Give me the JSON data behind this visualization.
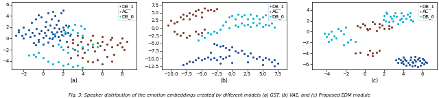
{
  "title": "Fig. 3: Speaker distribution of the emotion embeddings created by different models (a) GST, (b) VAE, and (c) Proposed EDM module",
  "subplot_labels": [
    "(a)",
    "(b)",
    "(c)"
  ],
  "colors": {
    "DB_1": "#1a4f9c",
    "AC": "#7b3728",
    "DB_6": "#00b4d4"
  },
  "plot_a": {
    "xlim": [
      -3.2,
      9.5
    ],
    "ylim": [
      -5.5,
      6.5
    ],
    "xticks": [
      -2,
      0,
      2,
      4,
      6,
      8
    ],
    "yticks": [
      -4,
      -2,
      0,
      2,
      4,
      6
    ],
    "DB_1": [
      [
        -2.5,
        1.5
      ],
      [
        -2.2,
        0.5
      ],
      [
        -2.0,
        2.0
      ],
      [
        -1.8,
        0.8
      ],
      [
        -1.5,
        1.5
      ],
      [
        -1.3,
        0.3
      ],
      [
        -1.1,
        1.0
      ],
      [
        -0.9,
        0.5
      ],
      [
        -0.7,
        1.8
      ],
      [
        -0.5,
        -0.2
      ],
      [
        -0.4,
        0.9
      ],
      [
        -0.2,
        1.4
      ],
      [
        0.0,
        0.2
      ],
      [
        0.1,
        1.0
      ],
      [
        0.2,
        2.1
      ],
      [
        0.3,
        0.6
      ],
      [
        0.5,
        1.5
      ],
      [
        0.6,
        0.1
      ],
      [
        0.7,
        2.3
      ],
      [
        0.8,
        1.2
      ],
      [
        0.9,
        -0.1
      ],
      [
        1.0,
        0.8
      ],
      [
        1.1,
        1.9
      ],
      [
        1.2,
        0.4
      ],
      [
        1.3,
        2.5
      ],
      [
        1.4,
        1.1
      ],
      [
        1.5,
        0.3
      ],
      [
        1.6,
        1.7
      ],
      [
        1.7,
        -0.3
      ],
      [
        1.8,
        1.3
      ],
      [
        1.9,
        0.7
      ],
      [
        2.0,
        2.0
      ],
      [
        2.1,
        1.5
      ],
      [
        2.2,
        0.9
      ],
      [
        2.3,
        2.4
      ],
      [
        2.4,
        -0.5
      ],
      [
        2.5,
        1.0
      ],
      [
        2.6,
        2.2
      ],
      [
        2.7,
        0.5
      ],
      [
        0.3,
        3.0
      ],
      [
        0.8,
        3.5
      ],
      [
        1.2,
        4.0
      ],
      [
        1.5,
        3.2
      ],
      [
        1.8,
        4.5
      ],
      [
        2.0,
        5.0
      ],
      [
        1.0,
        4.8
      ],
      [
        -0.2,
        3.8
      ],
      [
        -0.8,
        3.5
      ],
      [
        -1.2,
        2.8
      ],
      [
        -0.5,
        4.2
      ],
      [
        0.5,
        4.5
      ],
      [
        -2.0,
        0.0
      ],
      [
        -2.5,
        1.2
      ],
      [
        -2.8,
        0.5
      ],
      [
        -1.0,
        -0.8
      ],
      [
        -0.8,
        -1.2
      ],
      [
        -0.5,
        -0.5
      ],
      [
        0.0,
        -1.0
      ],
      [
        0.5,
        -0.7
      ],
      [
        1.0,
        -1.3
      ]
    ],
    "AC": [
      [
        2.5,
        -1.5
      ],
      [
        3.0,
        -0.8
      ],
      [
        3.2,
        -2.0
      ],
      [
        3.5,
        -1.2
      ],
      [
        3.8,
        -0.5
      ],
      [
        4.0,
        -1.8
      ],
      [
        4.2,
        -2.5
      ],
      [
        4.5,
        -1.0
      ],
      [
        4.8,
        -0.3
      ],
      [
        5.0,
        -1.5
      ],
      [
        5.2,
        -2.2
      ],
      [
        5.5,
        -0.8
      ],
      [
        5.8,
        -1.3
      ],
      [
        6.0,
        -0.5
      ],
      [
        6.2,
        -2.0
      ],
      [
        6.5,
        -1.0
      ],
      [
        6.8,
        -0.2
      ],
      [
        7.0,
        -1.5
      ],
      [
        7.2,
        -2.8
      ],
      [
        7.5,
        -1.2
      ],
      [
        7.8,
        -0.8
      ],
      [
        8.0,
        -1.5
      ],
      [
        8.2,
        -2.0
      ],
      [
        8.5,
        -0.5
      ],
      [
        3.5,
        -3.0
      ],
      [
        4.0,
        -3.5
      ],
      [
        4.5,
        -4.0
      ],
      [
        5.0,
        -4.2
      ],
      [
        5.5,
        -3.8
      ],
      [
        6.0,
        -4.5
      ],
      [
        6.5,
        -3.2
      ],
      [
        7.0,
        -4.0
      ],
      [
        3.0,
        -0.2
      ],
      [
        3.5,
        0.5
      ],
      [
        4.0,
        0.2
      ],
      [
        2.8,
        -3.5
      ],
      [
        5.0,
        0.5
      ],
      [
        6.0,
        0.3
      ],
      [
        7.0,
        0.2
      ],
      [
        8.0,
        0.1
      ]
    ],
    "DB_6": [
      [
        2.0,
        0.5
      ],
      [
        2.2,
        1.2
      ],
      [
        2.5,
        2.0
      ],
      [
        2.8,
        0.8
      ],
      [
        3.0,
        1.5
      ],
      [
        3.2,
        2.5
      ],
      [
        3.5,
        1.0
      ],
      [
        3.8,
        2.2
      ],
      [
        4.0,
        0.5
      ],
      [
        4.2,
        1.8
      ],
      [
        1.5,
        -1.0
      ],
      [
        1.8,
        -1.5
      ],
      [
        2.0,
        -2.0
      ],
      [
        2.5,
        -2.5
      ],
      [
        3.0,
        -1.8
      ],
      [
        3.5,
        -2.2
      ],
      [
        4.0,
        -1.5
      ],
      [
        4.5,
        -2.0
      ],
      [
        5.0,
        -1.0
      ],
      [
        5.5,
        -1.5
      ],
      [
        1.0,
        0.2
      ],
      [
        1.2,
        0.8
      ],
      [
        -0.5,
        -2.5
      ],
      [
        -1.0,
        -2.8
      ],
      [
        -0.8,
        -3.2
      ],
      [
        -1.5,
        -3.0
      ],
      [
        0.0,
        -3.5
      ],
      [
        0.5,
        -4.0
      ],
      [
        1.0,
        -4.5
      ],
      [
        1.5,
        -4.2
      ],
      [
        2.0,
        -4.8
      ],
      [
        2.5,
        -4.5
      ],
      [
        3.0,
        -5.0
      ],
      [
        3.5,
        -4.8
      ],
      [
        4.0,
        -5.2
      ]
    ]
  },
  "plot_b": {
    "xlim": [
      -11.5,
      9.0
    ],
    "ylim": [
      -13.5,
      8.5
    ],
    "xticks": [
      -10.0,
      -7.5,
      -5.0,
      -2.5,
      0.0,
      2.5,
      5.0,
      7.5
    ],
    "yticks": [
      -12.5,
      -10.0,
      -7.5,
      -5.0,
      -2.5,
      0.0,
      2.5,
      5.0,
      7.5
    ],
    "DB_1": [
      [
        -3.0,
        -5.0
      ],
      [
        -2.5,
        -5.5
      ],
      [
        -2.0,
        -6.0
      ],
      [
        -1.5,
        -5.8
      ],
      [
        -1.0,
        -6.5
      ],
      [
        -0.5,
        -7.0
      ],
      [
        0.0,
        -6.2
      ],
      [
        0.5,
        -7.5
      ],
      [
        1.0,
        -8.0
      ],
      [
        1.5,
        -7.2
      ],
      [
        2.0,
        -8.5
      ],
      [
        2.5,
        -9.0
      ],
      [
        3.0,
        -8.2
      ],
      [
        3.5,
        -9.5
      ],
      [
        4.0,
        -10.0
      ],
      [
        4.5,
        -9.2
      ],
      [
        5.0,
        -10.5
      ],
      [
        5.5,
        -9.8
      ],
      [
        6.0,
        -10.2
      ],
      [
        6.5,
        -11.0
      ],
      [
        7.0,
        -10.5
      ],
      [
        7.5,
        -11.5
      ],
      [
        -0.5,
        -9.0
      ],
      [
        -1.0,
        -9.5
      ],
      [
        -1.5,
        -10.0
      ],
      [
        -2.0,
        -9.2
      ],
      [
        -2.5,
        -10.5
      ],
      [
        -3.0,
        -9.8
      ],
      [
        -3.5,
        -10.2
      ],
      [
        -4.0,
        -9.5
      ],
      [
        -4.5,
        -10.0
      ],
      [
        -5.0,
        -10.5
      ],
      [
        -5.5,
        -9.8
      ],
      [
        -6.0,
        -10.5
      ],
      [
        -6.5,
        -11.0
      ],
      [
        -7.0,
        -10.8
      ],
      [
        -7.5,
        -11.5
      ],
      [
        -8.0,
        -12.0
      ],
      [
        -3.5,
        -8.0
      ],
      [
        -2.0,
        -11.5
      ],
      [
        0.0,
        -11.2
      ],
      [
        2.5,
        -11.0
      ],
      [
        5.0,
        -12.0
      ],
      [
        7.0,
        -12.5
      ]
    ],
    "AC": [
      [
        -8.0,
        3.0
      ],
      [
        -7.5,
        4.0
      ],
      [
        -7.0,
        5.0
      ],
      [
        -6.5,
        4.5
      ],
      [
        -6.0,
        5.5
      ],
      [
        -5.5,
        6.0
      ],
      [
        -5.0,
        5.2
      ],
      [
        -4.5,
        6.5
      ],
      [
        -4.0,
        5.8
      ],
      [
        -3.5,
        6.0
      ],
      [
        -3.0,
        5.5
      ],
      [
        -2.5,
        6.2
      ],
      [
        -9.0,
        2.0
      ],
      [
        -8.5,
        3.5
      ],
      [
        -8.0,
        4.5
      ],
      [
        -7.0,
        3.0
      ],
      [
        -6.0,
        4.0
      ],
      [
        -5.0,
        3.5
      ],
      [
        -9.5,
        1.5
      ],
      [
        -10.0,
        2.5
      ],
      [
        -9.5,
        -1.0
      ],
      [
        -9.0,
        -2.0
      ],
      [
        -8.5,
        -2.5
      ],
      [
        -8.0,
        -1.5
      ],
      [
        -7.5,
        -3.0
      ],
      [
        -7.0,
        -2.5
      ],
      [
        -6.0,
        -1.0
      ],
      [
        -5.5,
        -2.0
      ],
      [
        -5.0,
        -1.5
      ],
      [
        -4.5,
        -0.5
      ],
      [
        -10.5,
        1.0
      ]
    ],
    "DB_6": [
      [
        -0.5,
        3.5
      ],
      [
        0.0,
        4.0
      ],
      [
        0.5,
        3.0
      ],
      [
        1.0,
        4.5
      ],
      [
        1.5,
        3.8
      ],
      [
        2.0,
        4.2
      ],
      [
        2.5,
        3.0
      ],
      [
        3.0,
        4.5
      ],
      [
        3.5,
        3.2
      ],
      [
        4.0,
        4.0
      ],
      [
        4.5,
        2.8
      ],
      [
        5.0,
        3.5
      ],
      [
        5.5,
        4.2
      ],
      [
        6.0,
        3.0
      ],
      [
        6.5,
        4.5
      ],
      [
        7.0,
        3.8
      ],
      [
        7.5,
        4.0
      ],
      [
        0.5,
        1.0
      ],
      [
        1.0,
        0.5
      ],
      [
        1.5,
        1.5
      ],
      [
        2.0,
        0.8
      ],
      [
        2.5,
        1.2
      ],
      [
        3.0,
        0.5
      ],
      [
        3.5,
        1.8
      ],
      [
        4.0,
        0.8
      ],
      [
        4.5,
        1.5
      ],
      [
        5.0,
        0.5
      ],
      [
        5.5,
        1.2
      ],
      [
        6.0,
        0.8
      ],
      [
        6.5,
        1.5
      ],
      [
        7.0,
        0.2
      ],
      [
        -1.5,
        1.0
      ],
      [
        -2.0,
        -0.5
      ],
      [
        -2.5,
        -1.5
      ],
      [
        -3.0,
        -1.0
      ],
      [
        -3.5,
        -2.0
      ],
      [
        -4.0,
        -1.5
      ],
      [
        -4.5,
        -3.0
      ],
      [
        -5.0,
        -2.5
      ],
      [
        -5.5,
        -4.0
      ],
      [
        -1.0,
        2.0
      ],
      [
        -0.5,
        0.0
      ]
    ]
  },
  "plot_c": {
    "xlim": [
      -5.5,
      7.5
    ],
    "ylim": [
      -7.0,
      5.5
    ],
    "xticks": [
      -4,
      -2,
      0,
      2,
      4,
      6
    ],
    "yticks": [
      -6,
      -4,
      -2,
      0,
      2,
      4
    ],
    "DB_1": [
      [
        3.5,
        -5.0
      ],
      [
        3.7,
        -5.2
      ],
      [
        3.9,
        -5.5
      ],
      [
        4.1,
        -5.1
      ],
      [
        4.3,
        -5.4
      ],
      [
        4.5,
        -5.7
      ],
      [
        4.7,
        -5.3
      ],
      [
        4.9,
        -5.6
      ],
      [
        5.1,
        -5.2
      ],
      [
        5.3,
        -5.5
      ],
      [
        5.5,
        -5.1
      ],
      [
        5.7,
        -5.4
      ],
      [
        5.9,
        -5.7
      ],
      [
        6.1,
        -5.3
      ],
      [
        6.3,
        -5.6
      ],
      [
        4.0,
        -6.0
      ],
      [
        4.3,
        -6.3
      ],
      [
        4.6,
        -6.1
      ],
      [
        4.9,
        -6.4
      ],
      [
        5.2,
        -6.2
      ],
      [
        5.5,
        -6.5
      ],
      [
        5.8,
        -6.3
      ],
      [
        6.1,
        -6.0
      ],
      [
        3.8,
        -5.8
      ],
      [
        4.8,
        -4.8
      ],
      [
        5.2,
        -4.6
      ],
      [
        5.6,
        -4.9
      ],
      [
        3.2,
        -5.2
      ],
      [
        3.4,
        -5.8
      ],
      [
        4.0,
        -4.7
      ],
      [
        5.0,
        -5.8
      ],
      [
        6.0,
        -5.0
      ],
      [
        6.4,
        -5.8
      ]
    ],
    "AC": [
      [
        -0.5,
        0.8
      ],
      [
        0.0,
        1.2
      ],
      [
        0.5,
        0.5
      ],
      [
        1.0,
        1.5
      ],
      [
        1.5,
        0.8
      ],
      [
        0.8,
        1.8
      ],
      [
        -0.2,
        1.5
      ],
      [
        0.3,
        0.3
      ],
      [
        -0.8,
        1.0
      ],
      [
        1.2,
        0.2
      ],
      [
        1.8,
        1.2
      ],
      [
        2.0,
        0.6
      ],
      [
        2.5,
        1.0
      ],
      [
        1.5,
        1.5
      ],
      [
        0.5,
        -3.5
      ],
      [
        0.8,
        -4.0
      ],
      [
        1.2,
        -3.8
      ],
      [
        0.3,
        -4.2
      ],
      [
        0.8,
        -4.5
      ],
      [
        1.5,
        -3.5
      ],
      [
        -0.5,
        -3.8
      ],
      [
        -1.0,
        -4.0
      ],
      [
        2.5,
        0.5
      ],
      [
        2.8,
        0.8
      ],
      [
        0.2,
        0.5
      ]
    ],
    "DB_6": [
      [
        -4.0,
        -1.0
      ],
      [
        -3.8,
        -0.5
      ],
      [
        -3.5,
        -1.5
      ],
      [
        -3.2,
        -0.8
      ],
      [
        -3.0,
        -1.2
      ],
      [
        -4.2,
        -0.3
      ],
      [
        -3.8,
        -1.8
      ],
      [
        -3.5,
        0.0
      ],
      [
        2.0,
        3.0
      ],
      [
        2.3,
        3.3
      ],
      [
        2.6,
        2.8
      ],
      [
        2.2,
        3.6
      ],
      [
        1.9,
        2.2
      ],
      [
        2.8,
        2.5
      ],
      [
        3.0,
        3.0
      ],
      [
        3.3,
        2.8
      ],
      [
        3.1,
        3.5
      ],
      [
        3.6,
        2.2
      ],
      [
        2.9,
        2.0
      ],
      [
        2.5,
        1.8
      ],
      [
        2.1,
        2.0
      ],
      [
        3.4,
        1.5
      ],
      [
        3.8,
        2.5
      ],
      [
        4.0,
        3.0
      ],
      [
        4.3,
        2.5
      ],
      [
        3.9,
        1.8
      ],
      [
        4.6,
        2.8
      ],
      [
        4.8,
        2.2
      ],
      [
        4.4,
        3.2
      ],
      [
        5.0,
        2.0
      ],
      [
        3.8,
        3.5
      ],
      [
        4.7,
        3.5
      ],
      [
        -2.8,
        0.5
      ],
      [
        -2.5,
        0.2
      ],
      [
        -2.2,
        -0.5
      ],
      [
        -2.0,
        0.8
      ],
      [
        -1.5,
        -1.5
      ],
      [
        -2.2,
        -2.5
      ],
      [
        -1.8,
        -2.0
      ],
      [
        -1.0,
        -1.8
      ]
    ]
  },
  "figsize": [
    6.4,
    1.44
  ],
  "dpi": 100,
  "marker_size": 5,
  "font_size": 5.0
}
